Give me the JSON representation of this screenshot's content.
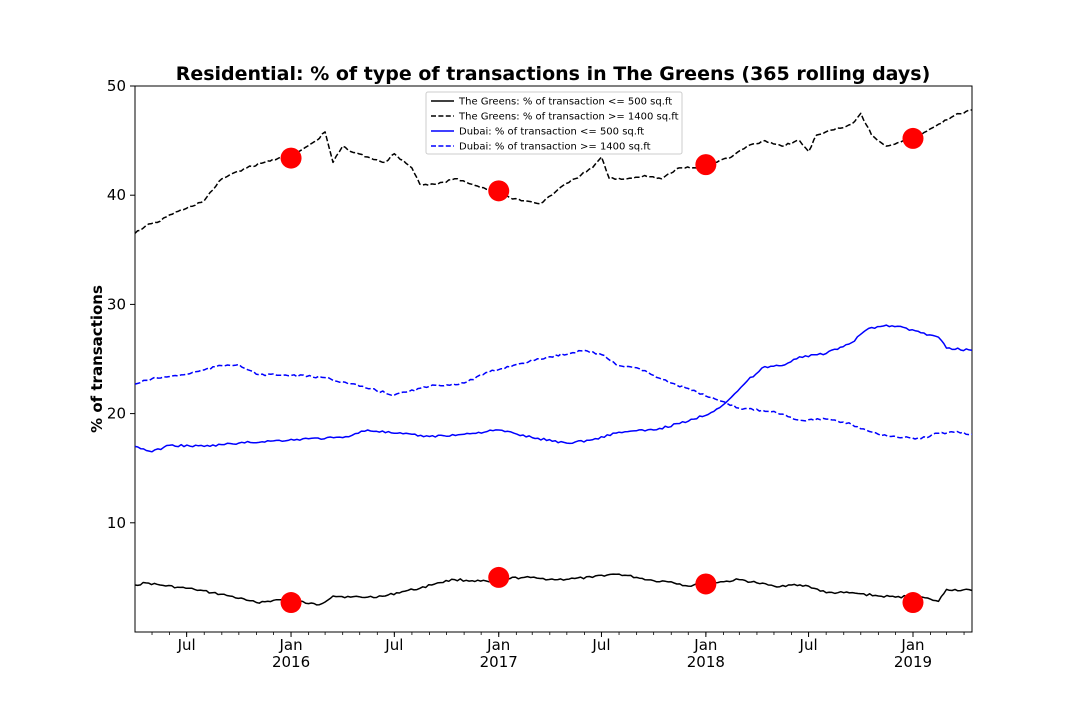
{
  "chart_data": {
    "type": "line",
    "title": "Residential: % of type of transactions in The Greens (365 rolling days)",
    "xlabel": "",
    "ylabel": "% of transactions",
    "xlim": [
      "2015-04-01",
      "2019-04-15"
    ],
    "ylim": [
      0,
      50
    ],
    "yticks": [
      10,
      20,
      30,
      40,
      50
    ],
    "xticks": [
      {
        "date": "2015-07-01",
        "label": "Jul",
        "sublabel": ""
      },
      {
        "date": "2016-01-01",
        "label": "Jan",
        "sublabel": "2016"
      },
      {
        "date": "2016-07-01",
        "label": "Jul",
        "sublabel": ""
      },
      {
        "date": "2017-01-01",
        "label": "Jan",
        "sublabel": "2017"
      },
      {
        "date": "2017-07-01",
        "label": "Jul",
        "sublabel": ""
      },
      {
        "date": "2018-01-01",
        "label": "Jan",
        "sublabel": "2018"
      },
      {
        "date": "2018-07-01",
        "label": "Jul",
        "sublabel": ""
      },
      {
        "date": "2019-01-01",
        "label": "Jan",
        "sublabel": "2019"
      }
    ],
    "grid": false,
    "legend_position": "top-center",
    "series": [
      {
        "name": "The Greens: % of transaction <= 500 sq.ft",
        "color": "#000000",
        "dash": "solid",
        "x": [
          "2015-04-01",
          "2015-04-20",
          "2015-05-15",
          "2015-06-15",
          "2015-07-15",
          "2015-08-15",
          "2015-09-15",
          "2015-10-15",
          "2015-11-01",
          "2015-12-01",
          "2016-01-01",
          "2016-02-01",
          "2016-02-20",
          "2016-03-15",
          "2016-04-15",
          "2016-05-15",
          "2016-06-15",
          "2016-07-15",
          "2016-08-15",
          "2016-09-15",
          "2016-10-15",
          "2016-11-15",
          "2016-12-15",
          "2017-01-15",
          "2017-02-15",
          "2017-03-15",
          "2017-04-15",
          "2017-05-15",
          "2017-06-15",
          "2017-07-01",
          "2017-08-01",
          "2017-09-01",
          "2017-10-01",
          "2017-11-01",
          "2017-12-01",
          "2018-01-01",
          "2018-02-01",
          "2018-03-01",
          "2018-04-01",
          "2018-05-01",
          "2018-06-01",
          "2018-07-01",
          "2018-08-01",
          "2018-09-01",
          "2018-10-01",
          "2018-11-01",
          "2018-12-01",
          "2019-01-01",
          "2019-02-01",
          "2019-02-15",
          "2019-03-01",
          "2019-04-15"
        ],
        "y": [
          4.3,
          4.5,
          4.3,
          4.1,
          3.9,
          3.6,
          3.3,
          2.9,
          2.7,
          2.9,
          3.0,
          2.6,
          2.5,
          3.3,
          3.2,
          3.2,
          3.3,
          3.7,
          4.0,
          4.5,
          4.8,
          4.7,
          4.6,
          4.9,
          5.0,
          4.9,
          4.8,
          4.9,
          5.0,
          5.2,
          5.3,
          5.0,
          4.7,
          4.6,
          4.2,
          4.5,
          4.6,
          4.8,
          4.5,
          4.2,
          4.3,
          4.2,
          3.6,
          3.6,
          3.5,
          3.3,
          3.2,
          3.3,
          3.0,
          2.8,
          3.9,
          3.8
        ]
      },
      {
        "name": "The Greens: % of transaction >= 1400 sq.ft",
        "color": "#000000",
        "dash": "dashed",
        "x": [
          "2015-04-01",
          "2015-04-20",
          "2015-05-10",
          "2015-06-01",
          "2015-07-01",
          "2015-08-01",
          "2015-09-01",
          "2015-09-20",
          "2015-10-15",
          "2015-11-15",
          "2015-12-15",
          "2016-01-15",
          "2016-02-15",
          "2016-03-01",
          "2016-03-15",
          "2016-04-01",
          "2016-04-15",
          "2016-05-15",
          "2016-06-15",
          "2016-07-01",
          "2016-08-01",
          "2016-08-15",
          "2016-09-15",
          "2016-10-15",
          "2016-11-15",
          "2016-12-15",
          "2017-01-01",
          "2017-01-20",
          "2017-02-15",
          "2017-03-15",
          "2017-04-15",
          "2017-05-15",
          "2017-06-15",
          "2017-07-01",
          "2017-07-15",
          "2017-08-15",
          "2017-09-15",
          "2017-10-15",
          "2017-11-15",
          "2017-12-15",
          "2018-01-15",
          "2018-02-15",
          "2018-03-15",
          "2018-04-15",
          "2018-05-15",
          "2018-06-15",
          "2018-07-01",
          "2018-07-15",
          "2018-08-15",
          "2018-09-15",
          "2018-10-01",
          "2018-10-20",
          "2018-11-15",
          "2018-12-15",
          "2019-01-15",
          "2019-02-15",
          "2019-03-15",
          "2019-04-15"
        ],
        "y": [
          36.5,
          37.2,
          37.5,
          38.2,
          38.8,
          39.5,
          41.5,
          42.0,
          42.5,
          43.0,
          43.5,
          44.0,
          45.0,
          45.8,
          43.0,
          44.5,
          44.0,
          43.5,
          43.0,
          43.8,
          42.5,
          41.0,
          41.0,
          41.5,
          41.0,
          40.5,
          40.2,
          39.8,
          39.5,
          39.2,
          40.5,
          41.5,
          42.5,
          43.5,
          41.5,
          41.5,
          41.8,
          41.5,
          42.5,
          42.5,
          43.0,
          43.5,
          44.5,
          45.0,
          44.5,
          45.0,
          44.0,
          45.5,
          46.0,
          46.5,
          47.5,
          45.5,
          44.5,
          45.0,
          45.5,
          46.5,
          47.3,
          47.8
        ]
      },
      {
        "name": "Dubai: % of transaction <= 500 sq.ft",
        "color": "#0000ff",
        "dash": "solid",
        "x": [
          "2015-04-01",
          "2015-05-01",
          "2015-06-01",
          "2015-08-01",
          "2015-10-01",
          "2015-12-01",
          "2016-02-01",
          "2016-04-01",
          "2016-05-15",
          "2016-07-01",
          "2016-09-01",
          "2016-11-01",
          "2017-01-01",
          "2017-03-01",
          "2017-05-01",
          "2017-06-15",
          "2017-08-01",
          "2017-10-01",
          "2017-12-01",
          "2018-01-15",
          "2018-02-15",
          "2018-03-15",
          "2018-04-15",
          "2018-05-15",
          "2018-06-15",
          "2018-08-01",
          "2018-09-15",
          "2018-10-15",
          "2018-11-15",
          "2018-12-15",
          "2019-01-15",
          "2019-02-15",
          "2019-03-01",
          "2019-04-15"
        ],
        "y": [
          17.0,
          16.5,
          17.1,
          17.0,
          17.3,
          17.5,
          17.7,
          17.8,
          18.5,
          18.2,
          17.9,
          18.1,
          18.5,
          17.8,
          17.3,
          17.6,
          18.3,
          18.5,
          19.3,
          20.2,
          21.5,
          23.0,
          24.3,
          24.4,
          25.2,
          25.5,
          26.5,
          27.8,
          28.1,
          27.9,
          27.4,
          27.0,
          26.0,
          25.8
        ]
      },
      {
        "name": "Dubai: % of transaction >= 1400 sq.ft",
        "color": "#0000ff",
        "dash": "dashed",
        "x": [
          "2015-04-01",
          "2015-05-01",
          "2015-06-01",
          "2015-07-01",
          "2015-08-01",
          "2015-09-01",
          "2015-10-01",
          "2015-11-01",
          "2016-01-01",
          "2016-03-01",
          "2016-05-01",
          "2016-07-01",
          "2016-09-01",
          "2016-11-01",
          "2016-12-15",
          "2017-02-01",
          "2017-04-01",
          "2017-06-01",
          "2017-07-01",
          "2017-08-01",
          "2017-09-01",
          "2017-10-01",
          "2017-11-01",
          "2017-12-01",
          "2018-01-01",
          "2018-03-01",
          "2018-05-01",
          "2018-06-15",
          "2018-08-01",
          "2018-09-15",
          "2018-11-01",
          "2018-12-15",
          "2019-01-15",
          "2019-02-15",
          "2019-03-15",
          "2019-04-15"
        ],
        "y": [
          22.7,
          23.2,
          23.4,
          23.6,
          24.0,
          24.4,
          24.5,
          23.6,
          23.5,
          23.3,
          22.5,
          21.7,
          22.5,
          22.8,
          23.8,
          24.5,
          25.2,
          25.8,
          25.4,
          24.4,
          24.2,
          23.5,
          22.8,
          22.3,
          21.6,
          20.5,
          20.2,
          19.4,
          19.5,
          19.0,
          18.1,
          17.8,
          17.7,
          18.2,
          18.3,
          18.1
        ]
      }
    ],
    "markers": {
      "color": "#ff0000",
      "x": [
        "2016-01-01",
        "2016-01-01",
        "2017-01-01",
        "2017-01-01",
        "2018-01-01",
        "2018-01-01",
        "2019-01-01",
        "2019-01-01"
      ],
      "y": [
        43.4,
        2.7,
        40.4,
        5.0,
        42.8,
        4.4,
        45.2,
        2.7
      ]
    }
  }
}
